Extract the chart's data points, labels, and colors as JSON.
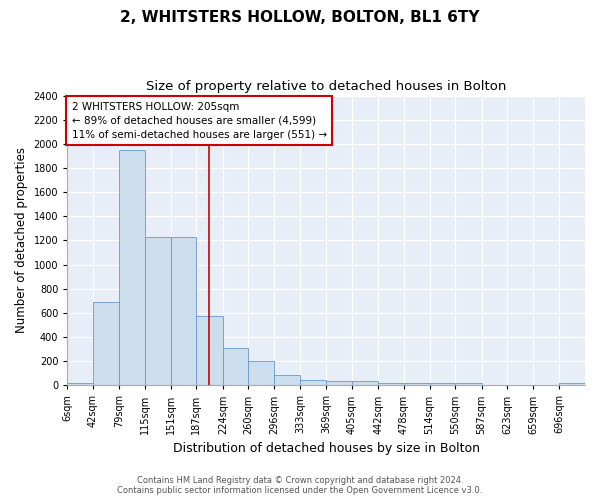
{
  "title": "2, WHITSTERS HOLLOW, BOLTON, BL1 6TY",
  "subtitle": "Size of property relative to detached houses in Bolton",
  "xlabel": "Distribution of detached houses by size in Bolton",
  "ylabel": "Number of detached properties",
  "bin_edges": [
    6,
    42,
    79,
    115,
    151,
    187,
    224,
    260,
    296,
    333,
    369,
    405,
    442,
    478,
    514,
    550,
    587,
    623,
    659,
    696,
    732
  ],
  "bar_heights": [
    20,
    690,
    1950,
    1230,
    1230,
    570,
    305,
    200,
    85,
    45,
    35,
    35,
    20,
    20,
    15,
    15,
    2,
    2,
    2,
    20
  ],
  "bar_color": "#ccdded",
  "bar_edge_color": "#6699cc",
  "vline_x": 205,
  "vline_color": "#cc0000",
  "annotation_line1": "2 WHITSTERS HOLLOW: 205sqm",
  "annotation_line2": "← 89% of detached houses are smaller (4,599)",
  "annotation_line3": "11% of semi-detached houses are larger (551) →",
  "ylim": [
    0,
    2400
  ],
  "yticks": [
    0,
    200,
    400,
    600,
    800,
    1000,
    1200,
    1400,
    1600,
    1800,
    2000,
    2200,
    2400
  ],
  "bg_color": "#e8eef8",
  "grid_color": "#ffffff",
  "footer_line1": "Contains HM Land Registry data © Crown copyright and database right 2024.",
  "footer_line2": "Contains public sector information licensed under the Open Government Licence v3.0.",
  "title_fontsize": 11,
  "subtitle_fontsize": 9.5,
  "tick_fontsize": 7,
  "ylabel_fontsize": 8.5,
  "xlabel_fontsize": 9,
  "annot_fontsize": 7.5,
  "footer_fontsize": 6
}
